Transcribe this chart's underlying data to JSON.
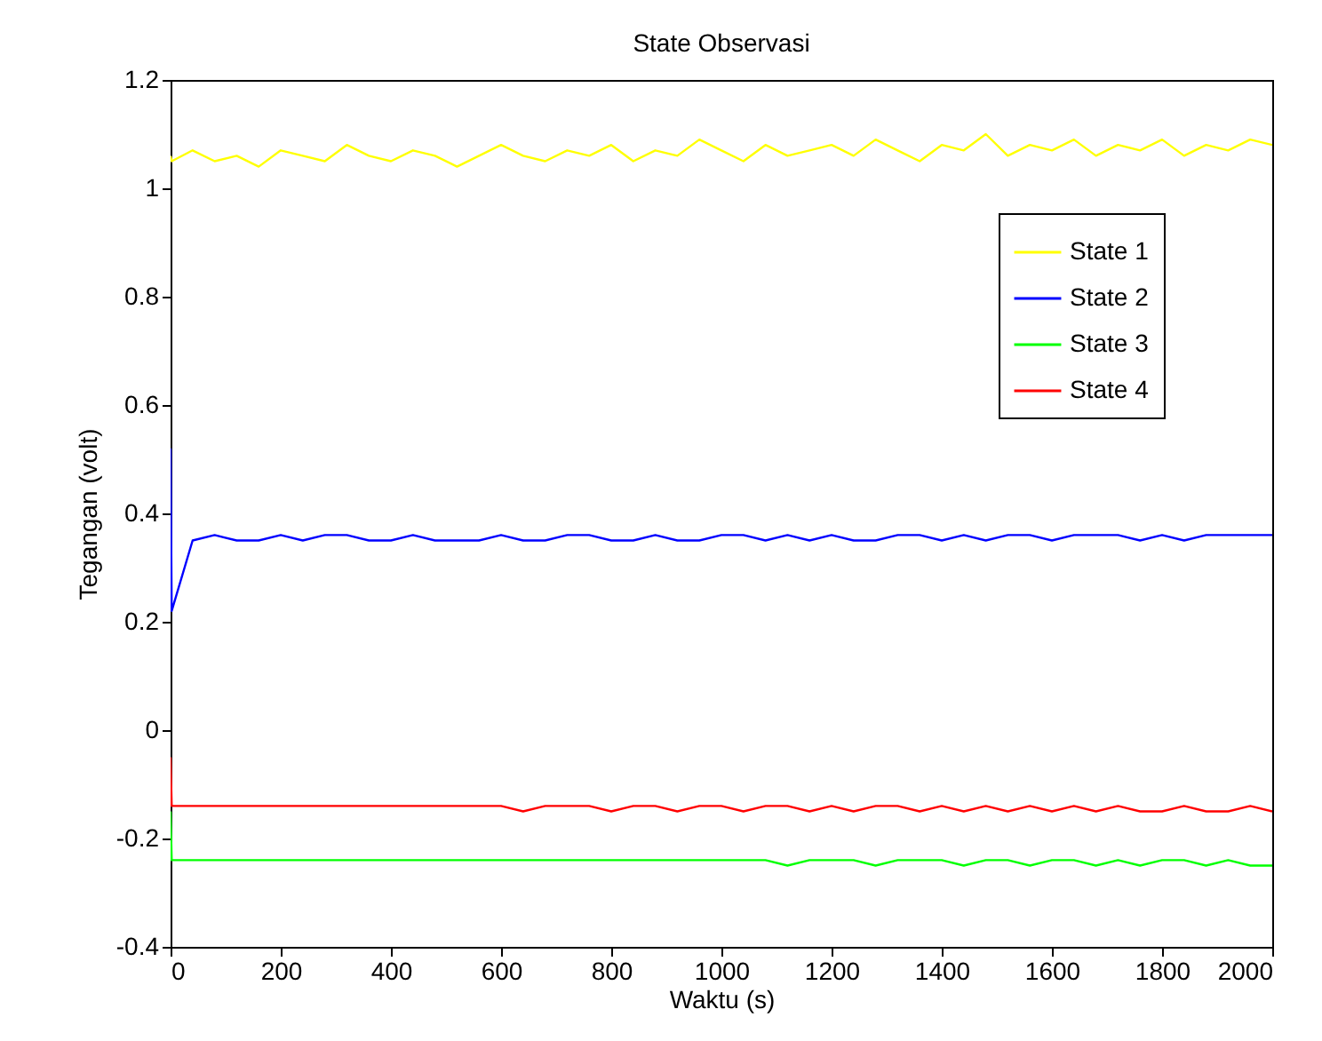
{
  "chart_data": {
    "type": "line",
    "title": "State Observasi",
    "xlabel": "Waktu (s)",
    "ylabel": "Tegangan (volt)",
    "x": [
      0,
      2,
      40,
      80,
      120,
      160,
      200,
      240,
      280,
      320,
      360,
      400,
      440,
      480,
      520,
      560,
      600,
      640,
      680,
      720,
      760,
      800,
      840,
      880,
      920,
      960,
      1000,
      1040,
      1080,
      1120,
      1160,
      1200,
      1240,
      1280,
      1320,
      1360,
      1400,
      1440,
      1480,
      1520,
      1560,
      1600,
      1640,
      1680,
      1720,
      1760,
      1800,
      1840,
      1880,
      1920,
      1960,
      2000
    ],
    "series": [
      {
        "name": "State 1",
        "color": "#ffff00",
        "values": [
          1.06,
          1.05,
          1.07,
          1.05,
          1.06,
          1.04,
          1.07,
          1.06,
          1.05,
          1.08,
          1.06,
          1.05,
          1.07,
          1.06,
          1.04,
          1.06,
          1.08,
          1.06,
          1.05,
          1.07,
          1.06,
          1.08,
          1.05,
          1.07,
          1.06,
          1.09,
          1.07,
          1.05,
          1.08,
          1.06,
          1.07,
          1.08,
          1.06,
          1.09,
          1.07,
          1.05,
          1.08,
          1.07,
          1.1,
          1.06,
          1.08,
          1.07,
          1.09,
          1.06,
          1.08,
          1.07,
          1.09,
          1.06,
          1.08,
          1.07,
          1.09,
          1.08
        ]
      },
      {
        "name": "State 2",
        "color": "#0000ff",
        "values": [
          0.52,
          0.22,
          0.35,
          0.36,
          0.35,
          0.35,
          0.36,
          0.35,
          0.36,
          0.36,
          0.35,
          0.35,
          0.36,
          0.35,
          0.35,
          0.35,
          0.36,
          0.35,
          0.35,
          0.36,
          0.36,
          0.35,
          0.35,
          0.36,
          0.35,
          0.35,
          0.36,
          0.36,
          0.35,
          0.36,
          0.35,
          0.36,
          0.35,
          0.35,
          0.36,
          0.36,
          0.35,
          0.36,
          0.35,
          0.36,
          0.36,
          0.35,
          0.36,
          0.36,
          0.36,
          0.35,
          0.36,
          0.35,
          0.36,
          0.36,
          0.36,
          0.36
        ]
      },
      {
        "name": "State 3",
        "color": "#00ff00",
        "values": [
          -0.15,
          -0.24,
          -0.24,
          -0.24,
          -0.24,
          -0.24,
          -0.24,
          -0.24,
          -0.24,
          -0.24,
          -0.24,
          -0.24,
          -0.24,
          -0.24,
          -0.24,
          -0.24,
          -0.24,
          -0.24,
          -0.24,
          -0.24,
          -0.24,
          -0.24,
          -0.24,
          -0.24,
          -0.24,
          -0.24,
          -0.24,
          -0.24,
          -0.24,
          -0.25,
          -0.24,
          -0.24,
          -0.24,
          -0.25,
          -0.24,
          -0.24,
          -0.24,
          -0.25,
          -0.24,
          -0.24,
          -0.25,
          -0.24,
          -0.24,
          -0.25,
          -0.24,
          -0.25,
          -0.24,
          -0.24,
          -0.25,
          -0.24,
          -0.25,
          -0.25
        ]
      },
      {
        "name": "State 4",
        "color": "#ff0000",
        "values": [
          -0.05,
          -0.14,
          -0.14,
          -0.14,
          -0.14,
          -0.14,
          -0.14,
          -0.14,
          -0.14,
          -0.14,
          -0.14,
          -0.14,
          -0.14,
          -0.14,
          -0.14,
          -0.14,
          -0.14,
          -0.15,
          -0.14,
          -0.14,
          -0.14,
          -0.15,
          -0.14,
          -0.14,
          -0.15,
          -0.14,
          -0.14,
          -0.15,
          -0.14,
          -0.14,
          -0.15,
          -0.14,
          -0.15,
          -0.14,
          -0.14,
          -0.15,
          -0.14,
          -0.15,
          -0.14,
          -0.15,
          -0.14,
          -0.15,
          -0.14,
          -0.15,
          -0.14,
          -0.15,
          -0.15,
          -0.14,
          -0.15,
          -0.15,
          -0.14,
          -0.15
        ]
      }
    ],
    "xlim": [
      0,
      2000
    ],
    "xticks": [
      0,
      200,
      400,
      600,
      800,
      1000,
      1200,
      1400,
      1600,
      1800,
      2000
    ],
    "ylim": [
      -0.4,
      1.2
    ],
    "yticks": [
      -0.4,
      -0.2,
      0,
      0.2,
      0.4,
      0.6,
      0.8,
      1,
      1.2
    ],
    "legend": "top right"
  }
}
